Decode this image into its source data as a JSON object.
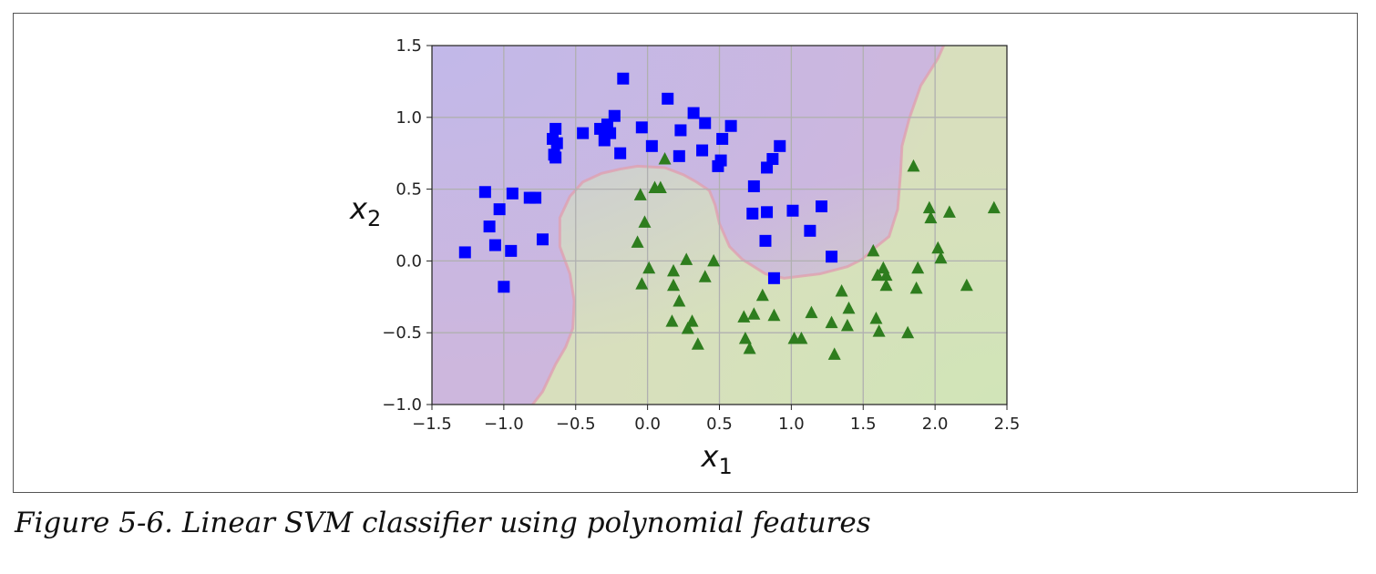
{
  "caption": "Figure 5-6. Linear SVM classifier using polynomial features",
  "chart_data": {
    "type": "scatter",
    "xlabel": "x1",
    "ylabel": "x2",
    "xlim": [
      -1.5,
      2.5
    ],
    "ylim": [
      -1.0,
      1.5
    ],
    "xticks": [
      "−1.5",
      "−1.0",
      "−0.5",
      "0.0",
      "0.5",
      "1.0",
      "1.5",
      "2.0",
      "2.5"
    ],
    "xtick_values": [
      -1.5,
      -1.0,
      -0.5,
      0.0,
      0.5,
      1.0,
      1.5,
      2.0,
      2.5
    ],
    "yticks": [
      "−1.0",
      "−0.5",
      "0.0",
      "0.5",
      "1.0",
      "1.5"
    ],
    "ytick_values": [
      -1.0,
      -0.5,
      0.0,
      0.5,
      1.0,
      1.5
    ],
    "grid": true,
    "colors": {
      "class0": "#0000ff",
      "class1": "#2e7d1e",
      "region0": "#cdb7dd",
      "region1": "#d8dfbd",
      "boundary": "#e0a0b0"
    },
    "series": [
      {
        "marker": "square",
        "points": [
          [
            -0.17,
            1.27
          ],
          [
            0.14,
            1.13
          ],
          [
            0.32,
            1.03
          ],
          [
            0.4,
            0.96
          ],
          [
            -0.23,
            1.01
          ],
          [
            -0.64,
            0.92
          ],
          [
            -0.66,
            0.85
          ],
          [
            -0.63,
            0.82
          ],
          [
            -0.65,
            0.74
          ],
          [
            -0.64,
            0.72
          ],
          [
            -0.45,
            0.89
          ],
          [
            -0.33,
            0.92
          ],
          [
            -0.28,
            0.95
          ],
          [
            -0.26,
            0.89
          ],
          [
            -0.3,
            0.84
          ],
          [
            -0.04,
            0.93
          ],
          [
            0.03,
            0.8
          ],
          [
            -0.19,
            0.75
          ],
          [
            0.23,
            0.91
          ],
          [
            0.22,
            0.73
          ],
          [
            0.38,
            0.77
          ],
          [
            0.52,
            0.85
          ],
          [
            0.51,
            0.7
          ],
          [
            0.49,
            0.66
          ],
          [
            0.58,
            0.94
          ],
          [
            -1.13,
            0.48
          ],
          [
            -0.94,
            0.47
          ],
          [
            -0.82,
            0.44
          ],
          [
            -0.78,
            0.44
          ],
          [
            -1.03,
            0.36
          ],
          [
            -1.1,
            0.24
          ],
          [
            -0.73,
            0.15
          ],
          [
            -1.06,
            0.11
          ],
          [
            -0.95,
            0.07
          ],
          [
            -1.27,
            0.06
          ],
          [
            -1.0,
            -0.18
          ],
          [
            0.92,
            0.8
          ],
          [
            0.87,
            0.71
          ],
          [
            0.83,
            0.65
          ],
          [
            0.74,
            0.52
          ],
          [
            0.73,
            0.33
          ],
          [
            0.83,
            0.34
          ],
          [
            1.01,
            0.35
          ],
          [
            1.21,
            0.38
          ],
          [
            1.13,
            0.21
          ],
          [
            0.82,
            0.14
          ],
          [
            1.28,
            0.03
          ],
          [
            0.88,
            -0.12
          ]
        ]
      },
      {
        "marker": "triangle",
        "points": [
          [
            0.12,
            0.71
          ],
          [
            0.05,
            0.51
          ],
          [
            0.09,
            0.51
          ],
          [
            -0.05,
            0.46
          ],
          [
            -0.02,
            0.27
          ],
          [
            -0.07,
            0.13
          ],
          [
            1.85,
            0.66
          ],
          [
            1.96,
            0.37
          ],
          [
            1.97,
            0.3
          ],
          [
            2.1,
            0.34
          ],
          [
            2.41,
            0.37
          ],
          [
            1.57,
            0.07
          ],
          [
            2.02,
            0.09
          ],
          [
            2.04,
            0.02
          ],
          [
            1.64,
            -0.05
          ],
          [
            1.6,
            -0.1
          ],
          [
            1.66,
            -0.1
          ],
          [
            1.66,
            -0.17
          ],
          [
            1.88,
            -0.05
          ],
          [
            1.87,
            -0.19
          ],
          [
            2.22,
            -0.17
          ],
          [
            0.27,
            0.01
          ],
          [
            0.46,
            0.0
          ],
          [
            0.01,
            -0.05
          ],
          [
            0.18,
            -0.07
          ],
          [
            0.4,
            -0.11
          ],
          [
            -0.04,
            -0.16
          ],
          [
            0.18,
            -0.17
          ],
          [
            0.22,
            -0.28
          ],
          [
            0.17,
            -0.42
          ],
          [
            0.31,
            -0.42
          ],
          [
            0.28,
            -0.47
          ],
          [
            0.35,
            -0.58
          ],
          [
            0.8,
            -0.24
          ],
          [
            0.67,
            -0.39
          ],
          [
            0.74,
            -0.37
          ],
          [
            0.88,
            -0.38
          ],
          [
            0.68,
            -0.54
          ],
          [
            0.71,
            -0.61
          ],
          [
            1.02,
            -0.54
          ],
          [
            1.07,
            -0.54
          ],
          [
            1.14,
            -0.36
          ],
          [
            1.35,
            -0.21
          ],
          [
            1.4,
            -0.33
          ],
          [
            1.28,
            -0.43
          ],
          [
            1.39,
            -0.45
          ],
          [
            1.3,
            -0.65
          ],
          [
            1.59,
            -0.4
          ],
          [
            1.61,
            -0.49
          ],
          [
            1.81,
            -0.5
          ]
        ]
      }
    ],
    "decision_boundary": [
      [
        2.06,
        1.5
      ],
      [
        2.02,
        1.41
      ],
      [
        1.9,
        1.22
      ],
      [
        1.82,
        0.99
      ],
      [
        1.77,
        0.8
      ],
      [
        1.76,
        0.61
      ],
      [
        1.74,
        0.36
      ],
      [
        1.68,
        0.17
      ],
      [
        1.58,
        0.09
      ],
      [
        1.49,
        0.01
      ],
      [
        1.39,
        -0.04
      ],
      [
        1.2,
        -0.09
      ],
      [
        0.95,
        -0.12
      ],
      [
        0.82,
        -0.09
      ],
      [
        0.66,
        0.01
      ],
      [
        0.57,
        0.1
      ],
      [
        0.5,
        0.26
      ],
      [
        0.47,
        0.39
      ],
      [
        0.43,
        0.49
      ],
      [
        0.34,
        0.55
      ],
      [
        0.25,
        0.6
      ],
      [
        0.12,
        0.65
      ],
      [
        -0.07,
        0.66
      ],
      [
        -0.19,
        0.64
      ],
      [
        -0.32,
        0.61
      ],
      [
        -0.45,
        0.55
      ],
      [
        -0.54,
        0.45
      ],
      [
        -0.61,
        0.3
      ],
      [
        -0.61,
        0.1
      ],
      [
        -0.54,
        -0.09
      ],
      [
        -0.51,
        -0.28
      ],
      [
        -0.52,
        -0.47
      ],
      [
        -0.57,
        -0.6
      ],
      [
        -0.64,
        -0.72
      ],
      [
        -0.73,
        -0.91
      ],
      [
        -0.8,
        -1.0
      ]
    ]
  }
}
